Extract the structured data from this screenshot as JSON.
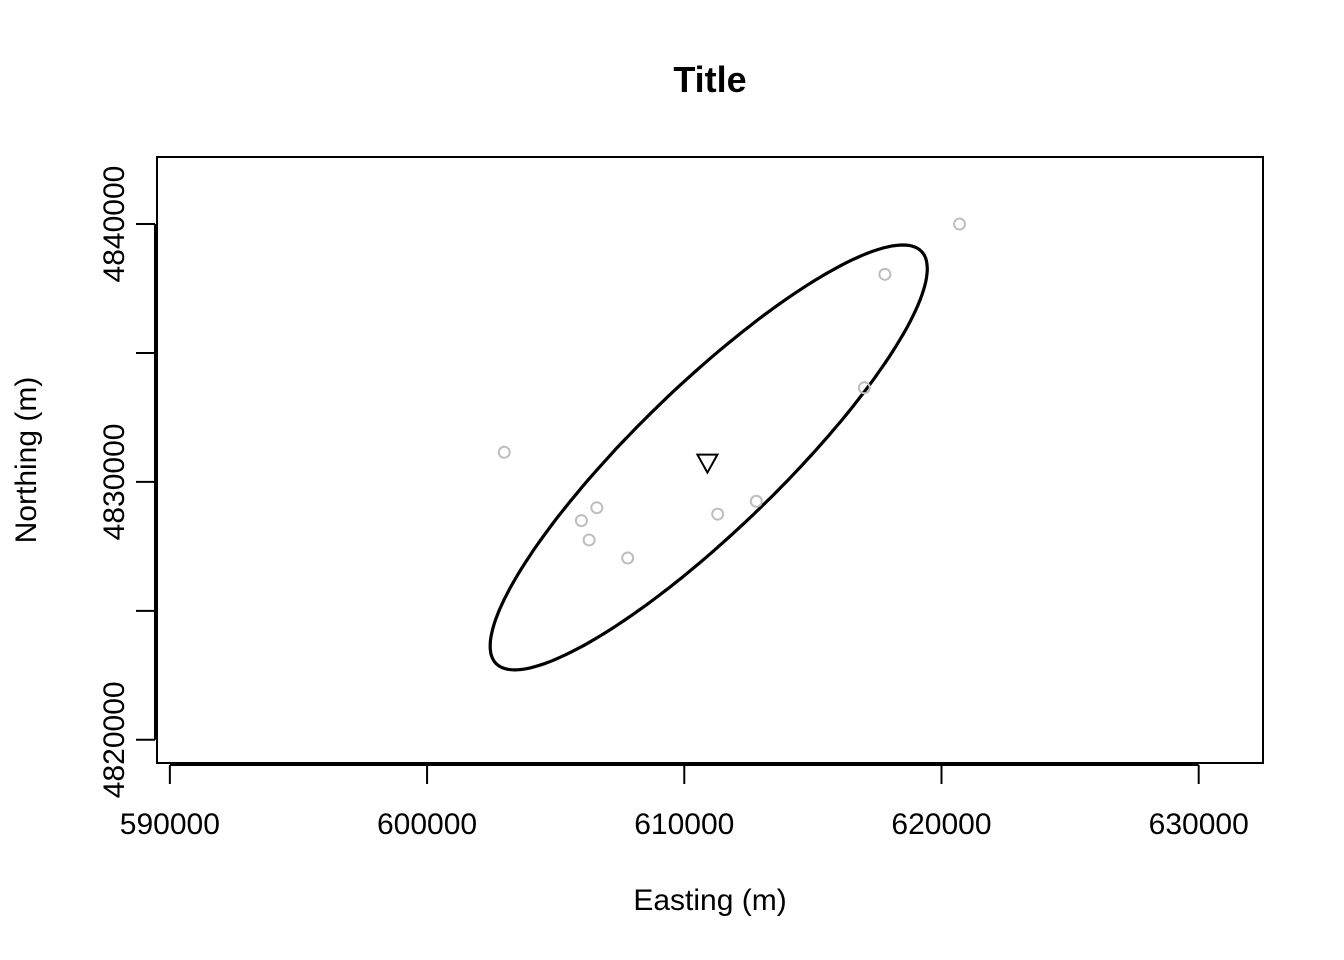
{
  "chart_data": {
    "type": "scatter",
    "title": "Title",
    "xlabel": "Easting (m)",
    "ylabel": "Northing (m)",
    "xlim": [
      589500,
      632500
    ],
    "ylim": [
      4819100,
      4842600
    ],
    "x_ticks": [
      590000,
      600000,
      610000,
      620000,
      630000
    ],
    "x_tick_labels": [
      "590000",
      "600000",
      "610000",
      "620000",
      "630000"
    ],
    "y_ticks": [
      4820000,
      4825000,
      4830000,
      4835000,
      4840000
    ],
    "y_tick_labels": [
      "4820000",
      "",
      "4830000",
      "",
      "4840000"
    ],
    "grid": false,
    "points": {
      "color": "#bebebe",
      "x": [
        603000,
        606000,
        606300,
        606600,
        607800,
        611300,
        612800,
        617000,
        617800,
        620700
      ],
      "y": [
        4831150,
        4828500,
        4827750,
        4829000,
        4827050,
        4828750,
        4829250,
        4833650,
        4838050,
        4840000
      ]
    },
    "center": {
      "x": 610900,
      "y": 4830750,
      "marker": "triangle-down",
      "color": "#000000"
    },
    "ellipse": {
      "cx": 610950,
      "cy": 4830950,
      "a": 11500,
      "b": 2800,
      "angle_deg": 44,
      "color": "#000000"
    }
  }
}
